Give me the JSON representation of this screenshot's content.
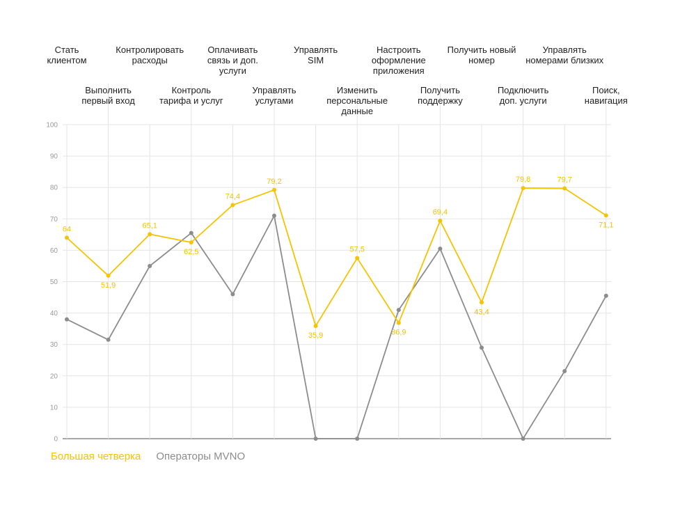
{
  "chart_data": {
    "type": "line",
    "categories": [
      "Стать\nклиентом",
      "Выполнить\nпервый вход",
      "Контролировать\nрасходы",
      "Контроль\nтарифа и услуг",
      "Оплачивать\nсвязь и доп.\nуслуги",
      "Управлять\nуслугами",
      "Управлять\nSIM",
      "Изменить\nперсональные\nданные",
      "Настроить\nоформление\nприложения",
      "Получить\nподдержку",
      "Получить новый\nномер",
      "Подключить\nдоп. услуги",
      "Управлять\nномерами близких",
      "Поиск,\nнавигация"
    ],
    "series": [
      {
        "name": "Большая четверка",
        "color": "#f5c400",
        "values": [
          64,
          51.9,
          65.1,
          62.5,
          74.4,
          79.2,
          35.9,
          57.5,
          36.9,
          69.4,
          43.4,
          79.8,
          79.7,
          71.1
        ],
        "labels": [
          "64",
          "51,9",
          "65,1",
          "62,5",
          "74,4",
          "79,2",
          "35,9",
          "57,5",
          "36,9",
          "69,4",
          "43,4",
          "79,8",
          "79,7",
          "71,1"
        ]
      },
      {
        "name": "Операторы MVNO",
        "color": "#8c8c8c",
        "values": [
          38,
          31.5,
          55,
          65.5,
          46,
          71,
          0,
          0,
          41,
          60.5,
          29,
          0,
          21.5,
          45.5
        ]
      }
    ],
    "ylim": [
      0,
      100
    ],
    "yticks": [
      "0",
      "10",
      "20",
      "30",
      "40",
      "50",
      "60",
      "70",
      "80",
      "90",
      "100"
    ],
    "grid": true,
    "legend_position": "bottom-left"
  },
  "legend": {
    "series_a": "Большая четверка",
    "series_b": "Операторы MVNO",
    "color_a": "#f5c400",
    "color_b": "#8c8c8c"
  }
}
